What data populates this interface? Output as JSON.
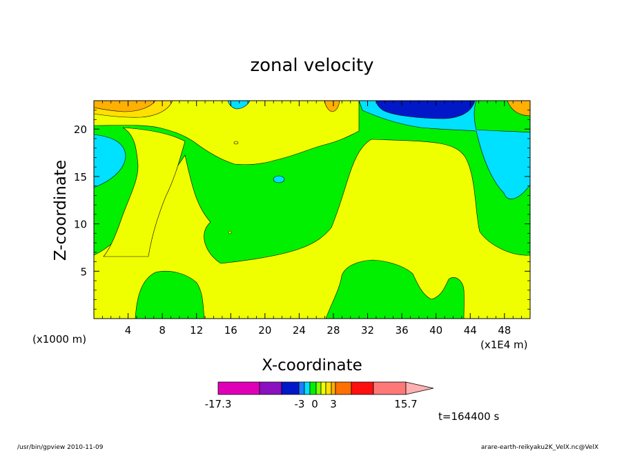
{
  "chart_data": {
    "type": "contour",
    "title": "zonal velocity",
    "xlabel": "X-coordinate",
    "ylabel": "Z-coordinate",
    "x_unit_label": "(x1E4 m)",
    "z_unit_label": "(x1000 m)",
    "xlim": [
      0,
      51
    ],
    "ylim": [
      0,
      23
    ],
    "x_ticks": [
      4,
      8,
      12,
      16,
      20,
      24,
      28,
      32,
      36,
      40,
      44,
      48
    ],
    "y_ticks": [
      5,
      10,
      15,
      20
    ],
    "colorbar": {
      "colors": [
        "#e000b8",
        "#8a10c0",
        "#0018c8",
        "#1880ff",
        "#00e0ff",
        "#00f000",
        "#80ff00",
        "#f0ff00",
        "#ffe000",
        "#ffb000",
        "#ff7000",
        "#ff1010",
        "#ff7878",
        "#ffb0b0"
      ],
      "labels": [
        "-17.3",
        "-3",
        "0",
        "3",
        "15.7"
      ]
    },
    "time_label": "t=164400 s"
  },
  "footer": {
    "left": "/usr/bin/gpview   2010-11-09",
    "right": "arare-earth-reikyaku2K_VelX.nc@VelX"
  }
}
